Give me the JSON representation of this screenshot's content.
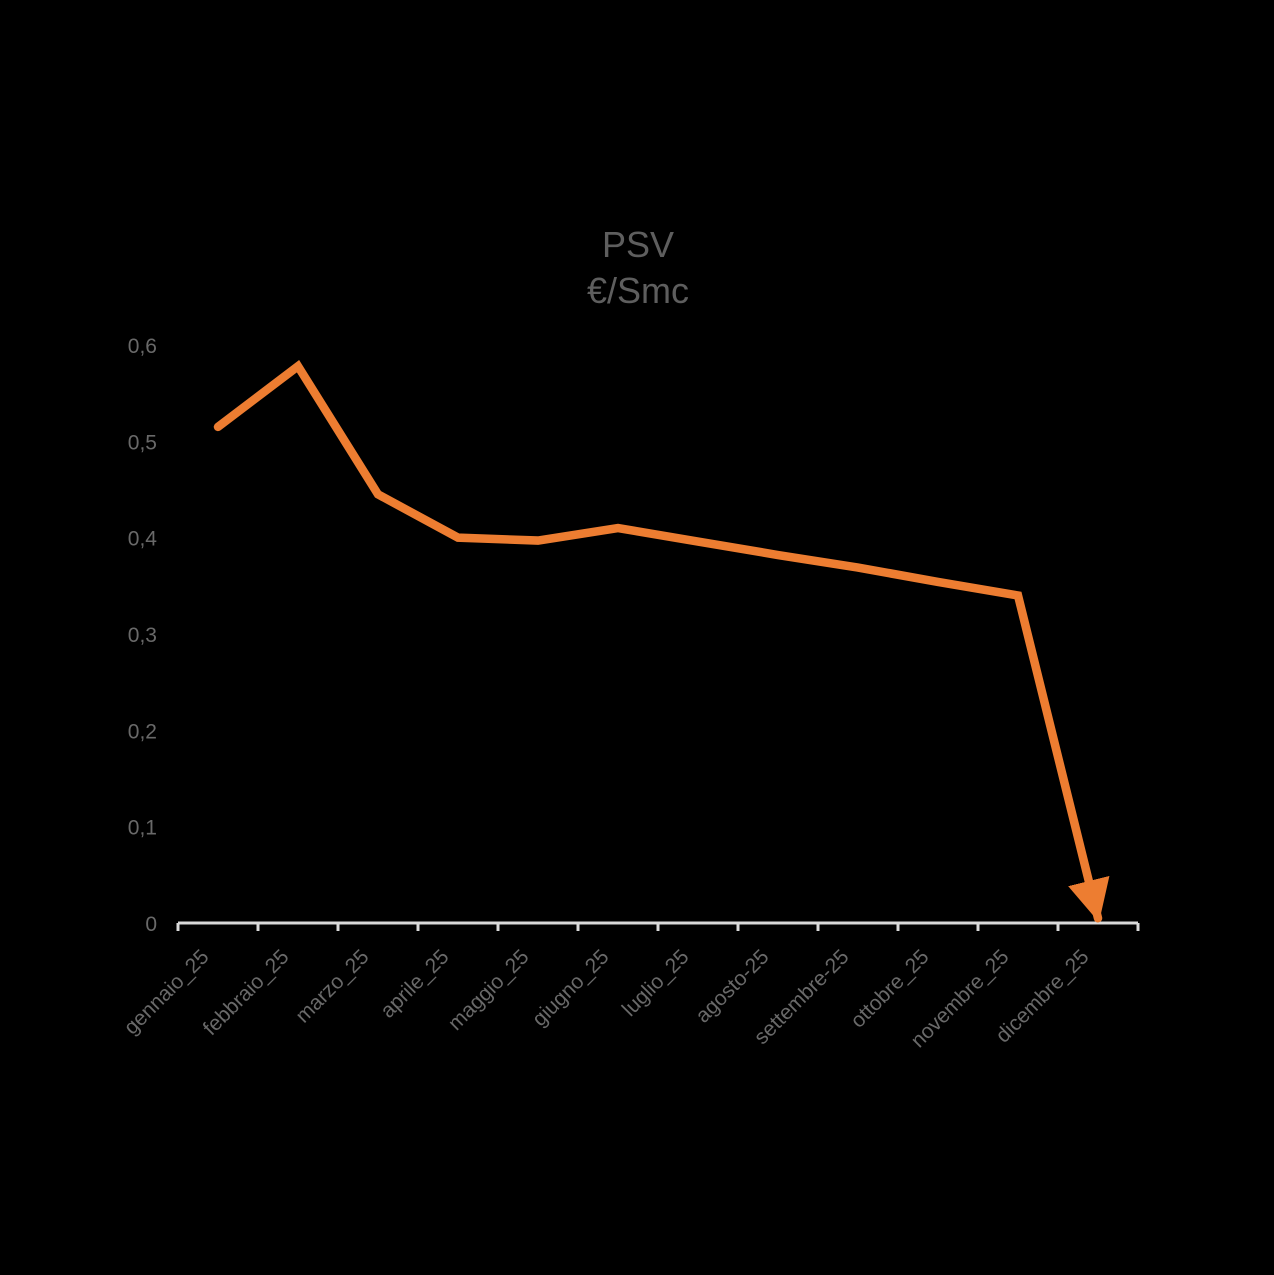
{
  "chart_data": {
    "type": "line",
    "title": "PSV",
    "subtitle": "€/Smc",
    "categories": [
      "gennaio_25",
      "febbraio_25",
      "marzo_25",
      "aprile_25",
      "maggio_25",
      "giugno_25",
      "luglio_25",
      "agosto-25",
      "settembre-25",
      "ottobre_25",
      "novembre_25",
      "dicembre_25"
    ],
    "series": [
      {
        "name": "PSV",
        "values": [
          0.515,
          0.578,
          0.445,
          0.4,
          0.397,
          0.41,
          0.396,
          0.382,
          0.369,
          0.354,
          0.34,
          0.005
        ]
      }
    ],
    "ylim": [
      0,
      0.6
    ],
    "y_ticks": [
      {
        "value": 0.0,
        "label": "0"
      },
      {
        "value": 0.1,
        "label": "0,1"
      },
      {
        "value": 0.2,
        "label": "0,2"
      },
      {
        "value": 0.3,
        "label": "0,3"
      },
      {
        "value": 0.4,
        "label": "0,4"
      },
      {
        "value": 0.5,
        "label": "0,5"
      },
      {
        "value": 0.6,
        "label": "0,6"
      }
    ],
    "xlabel": "",
    "ylabel": "",
    "grid": "off",
    "legend": "none",
    "x_label_rotation_deg": 45,
    "annotations": [
      "series line terminates in a downward arrowhead at dicembre_25, pointing to ~0 just above the x-axis"
    ],
    "colors": {
      "line": "#ED7D31",
      "axis": "#D9D9D9",
      "title_text": "#5E5E5E",
      "tick_text": "#696969",
      "background": "#000000"
    }
  }
}
